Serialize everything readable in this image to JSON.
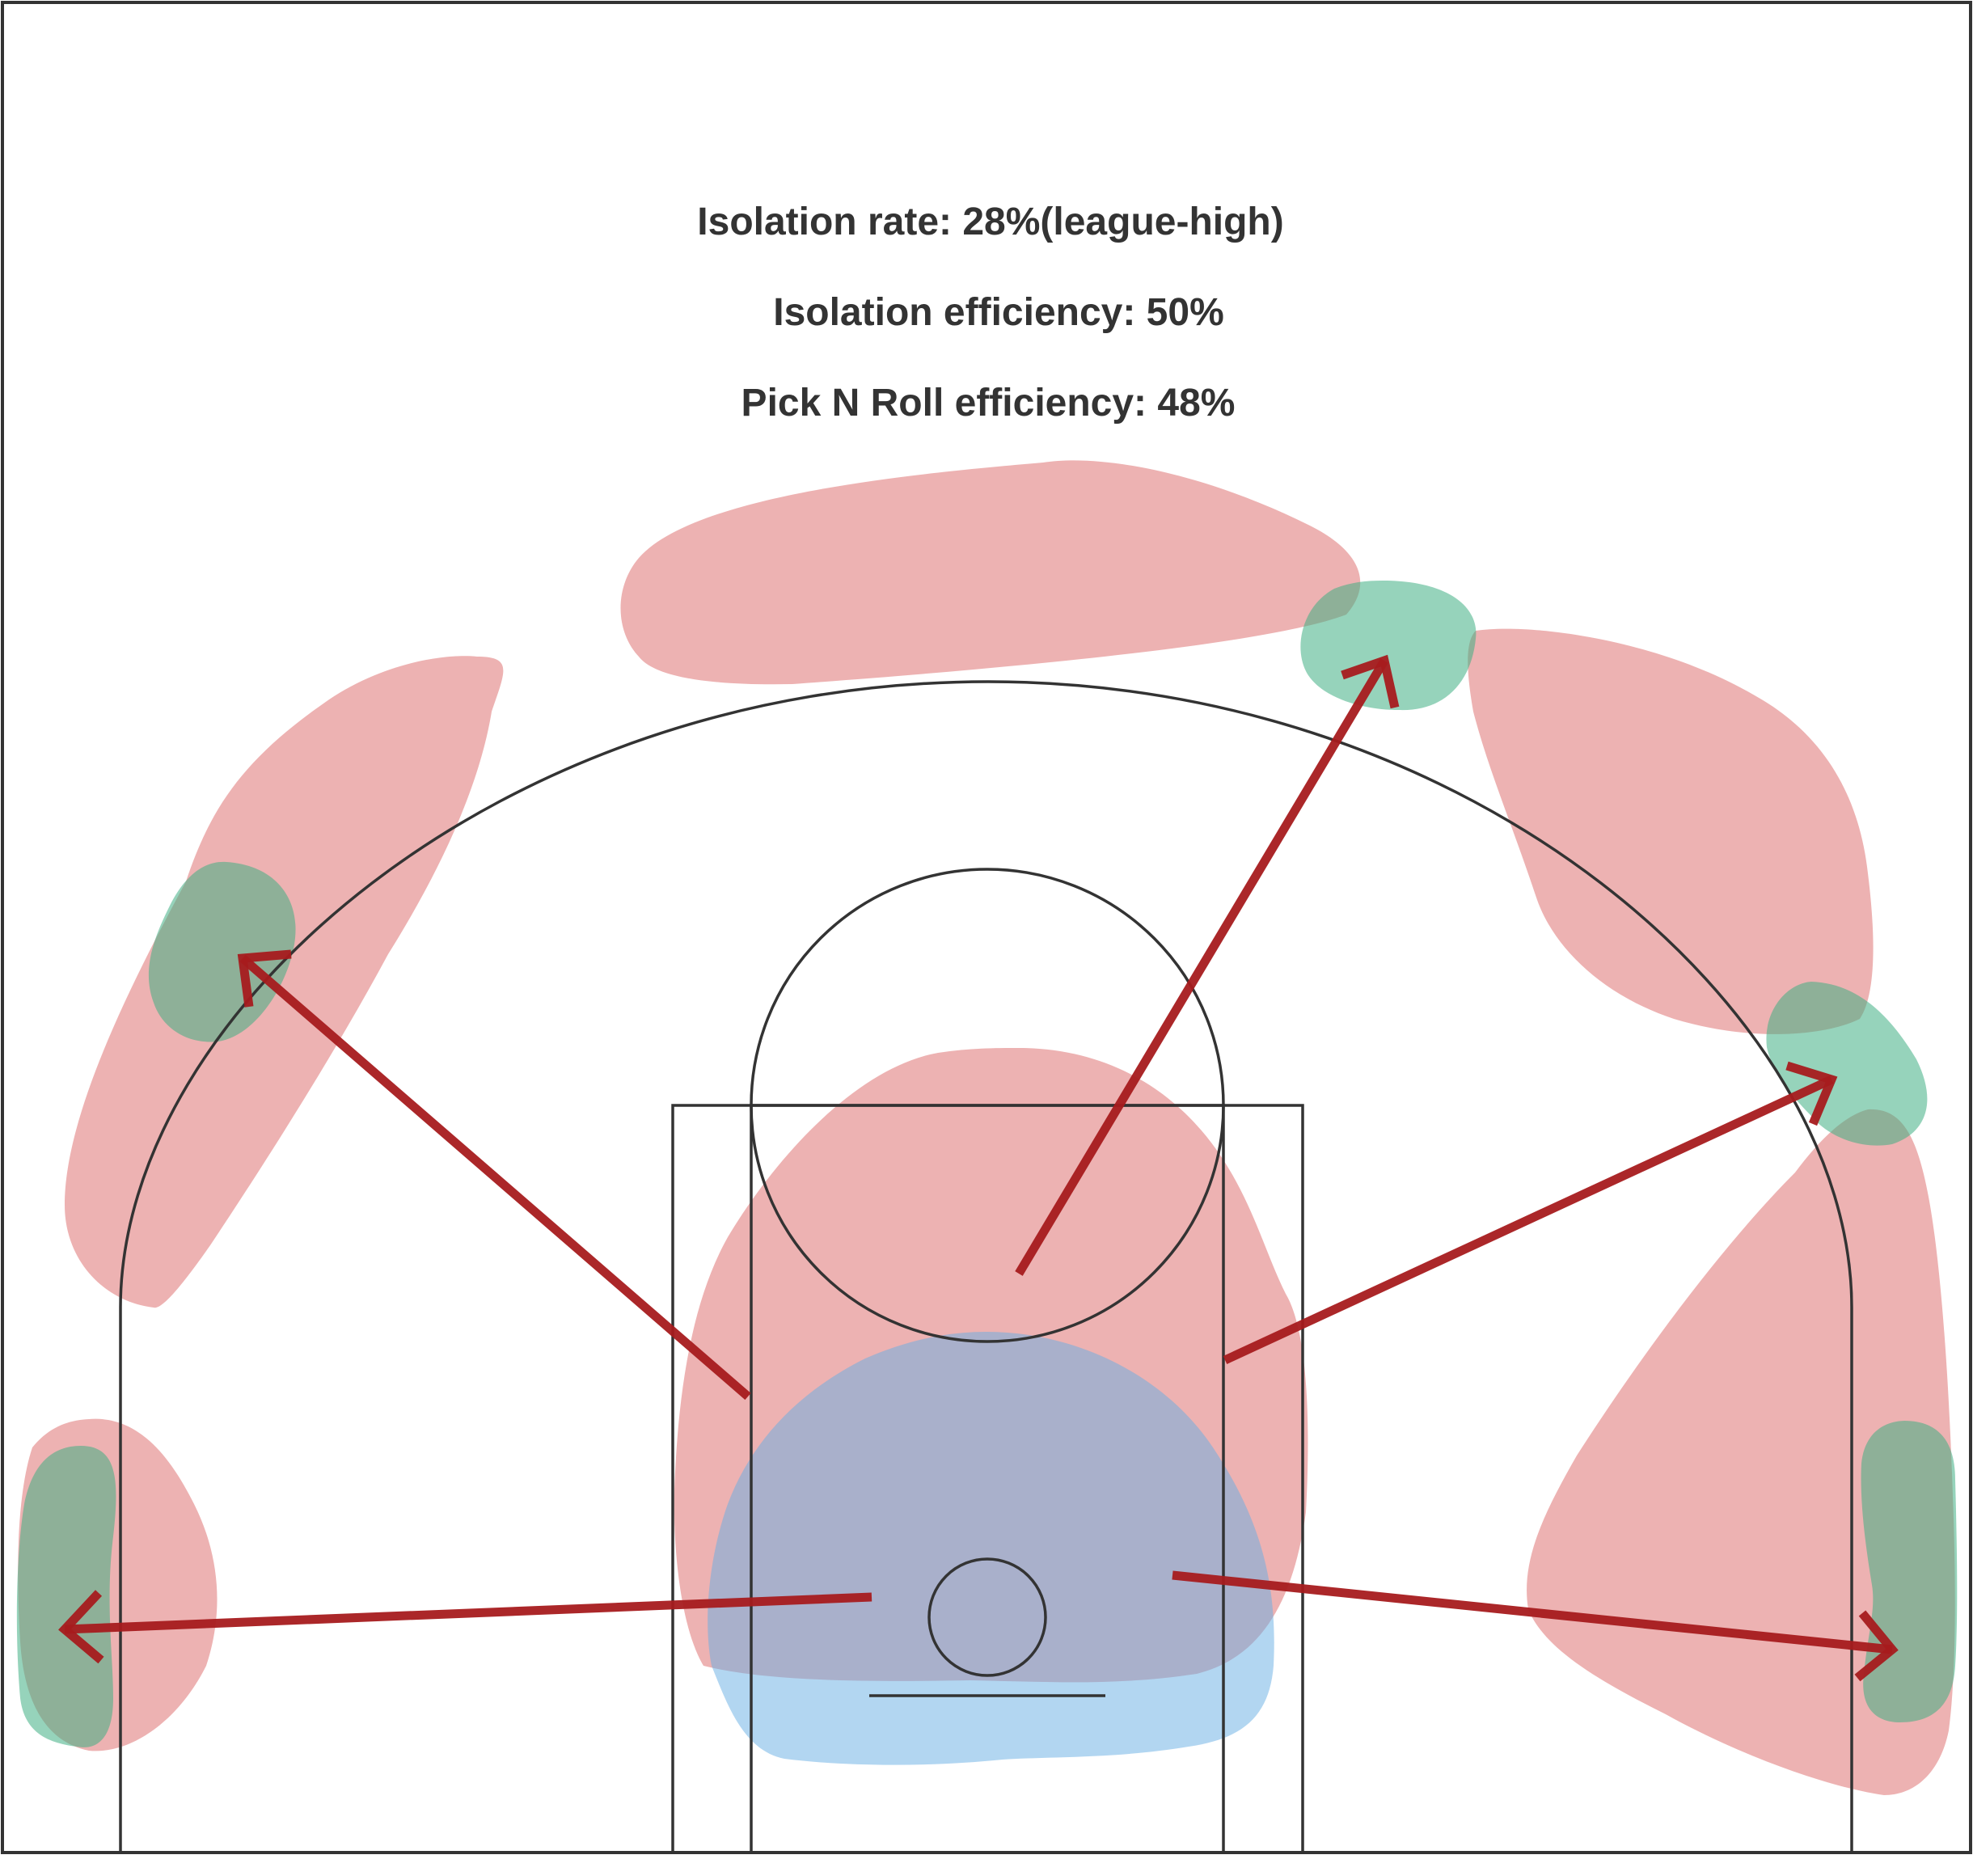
{
  "stats": {
    "isolation_rate": "Isolation rate: 28%(league-high)",
    "isolation_efficiency": "Isolation efficiency: 50%",
    "pnr_efficiency": "Pick N Roll efficiency: 48%"
  },
  "colors": {
    "background": "#ffffff",
    "court_lines": "#333333",
    "text": "#333333",
    "zone_red": "#e38888",
    "zone_green": "#3fae84",
    "zone_blue": "#66aee4",
    "arrow": "#a61b1e"
  }
}
